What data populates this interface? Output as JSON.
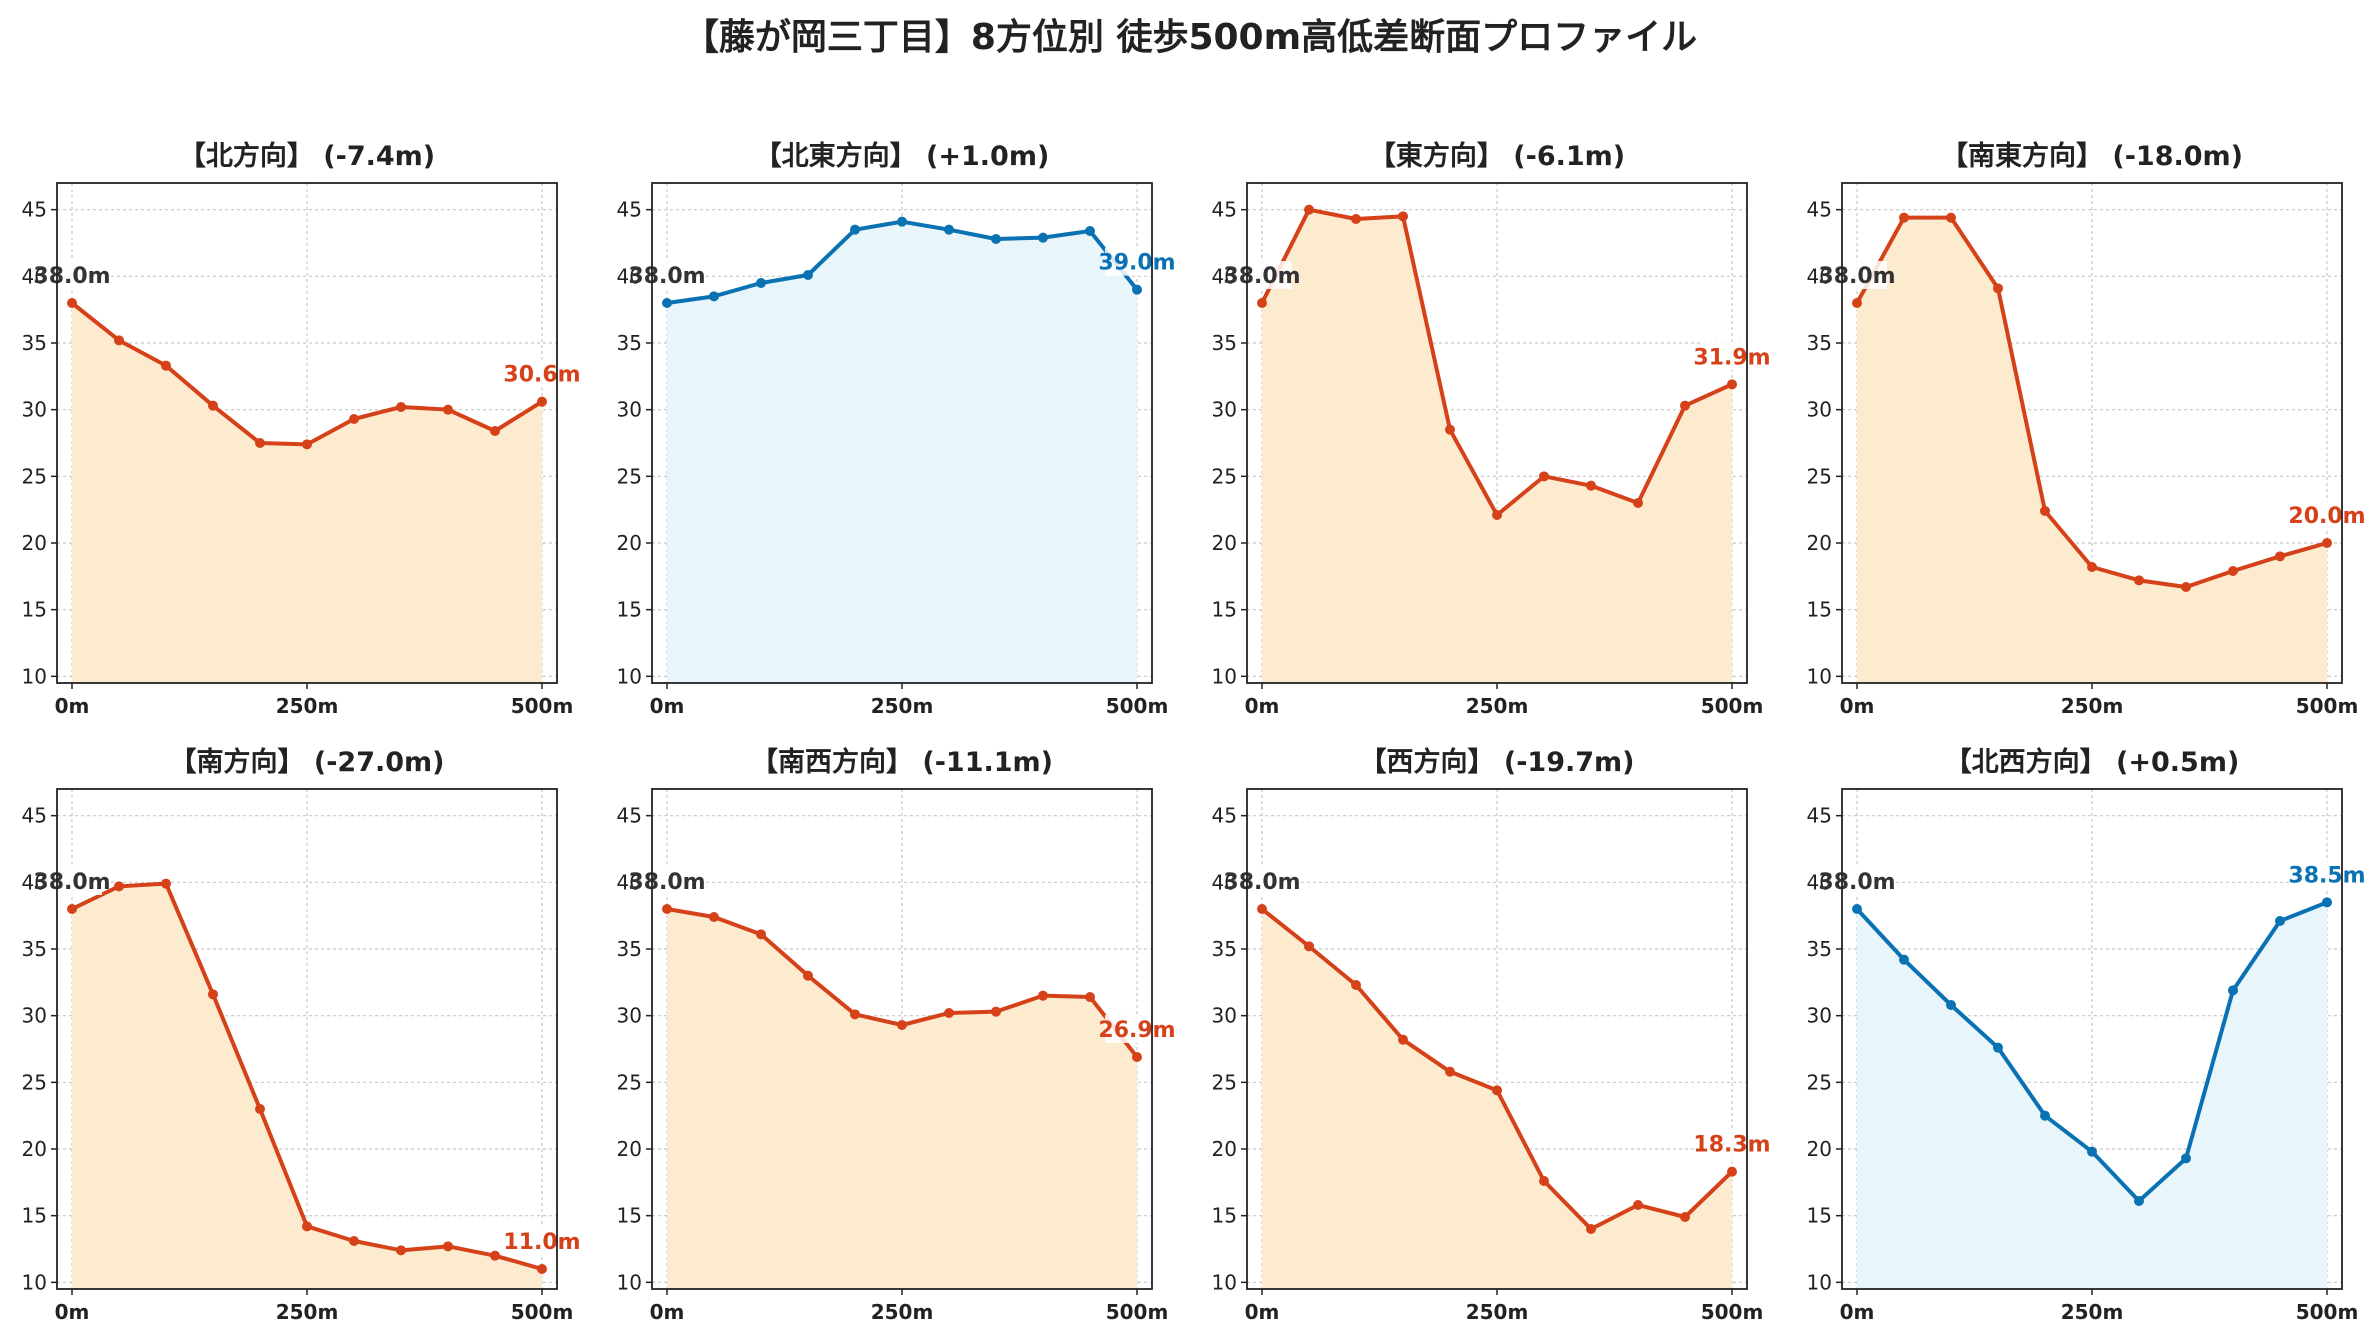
{
  "title": "【藤が岡三丁目】8方位別 徒歩500m高低差断面プロファイル",
  "colors": {
    "decrease_line": "#D5421A",
    "decrease_fill": "#FDEBD0",
    "increase_line": "#0A72B3",
    "increase_fill": "#E8F5FB",
    "start_label": "#333333",
    "grid": "#c8c8c8",
    "axis": "#222222"
  },
  "chart_data": [
    {
      "type": "area",
      "title": "【北方向】 (-7.4m)",
      "trend": "decrease",
      "x": [
        0,
        50,
        100,
        150,
        200,
        250,
        300,
        350,
        400,
        450,
        500
      ],
      "y": [
        38.0,
        35.2,
        33.3,
        30.3,
        27.5,
        27.4,
        29.3,
        30.2,
        30.0,
        28.4,
        30.6
      ],
      "start_label": "38.0m",
      "end_label": "30.6m",
      "xticks": [
        "0m",
        "250m",
        "500m"
      ],
      "yticks": [
        "10",
        "15",
        "20",
        "25",
        "30",
        "35",
        "40",
        "45"
      ],
      "xlim": [
        0,
        500
      ],
      "ylim": [
        9.5,
        47
      ],
      "grid": true
    },
    {
      "type": "area",
      "title": "【北東方向】 (+1.0m)",
      "trend": "increase",
      "x": [
        0,
        50,
        100,
        150,
        200,
        250,
        300,
        350,
        400,
        450,
        500
      ],
      "y": [
        38.0,
        38.5,
        39.5,
        40.1,
        43.5,
        44.1,
        43.5,
        42.8,
        42.9,
        43.4,
        39.0
      ],
      "start_label": "38.0m",
      "end_label": "39.0m",
      "xticks": [
        "0m",
        "250m",
        "500m"
      ],
      "yticks": [
        "10",
        "15",
        "20",
        "25",
        "30",
        "35",
        "40",
        "45"
      ],
      "xlim": [
        0,
        500
      ],
      "ylim": [
        9.5,
        47
      ],
      "grid": true
    },
    {
      "type": "area",
      "title": "【東方向】 (-6.1m)",
      "trend": "decrease",
      "x": [
        0,
        50,
        100,
        150,
        200,
        250,
        300,
        350,
        400,
        450,
        500
      ],
      "y": [
        38.0,
        45.0,
        44.3,
        44.5,
        28.5,
        22.1,
        25.0,
        24.3,
        23.0,
        30.3,
        31.9
      ],
      "start_label": "38.0m",
      "end_label": "31.9m",
      "xticks": [
        "0m",
        "250m",
        "500m"
      ],
      "yticks": [
        "10",
        "15",
        "20",
        "25",
        "30",
        "35",
        "40",
        "45"
      ],
      "xlim": [
        0,
        500
      ],
      "ylim": [
        9.5,
        47
      ],
      "grid": true
    },
    {
      "type": "area",
      "title": "【南東方向】 (-18.0m)",
      "trend": "decrease",
      "x": [
        0,
        50,
        100,
        150,
        200,
        250,
        300,
        350,
        400,
        450,
        500
      ],
      "y": [
        38.0,
        44.4,
        44.4,
        39.1,
        22.4,
        18.2,
        17.2,
        16.7,
        17.9,
        19.0,
        20.0
      ],
      "start_label": "38.0m",
      "end_label": "20.0m",
      "xticks": [
        "0m",
        "250m",
        "500m"
      ],
      "yticks": [
        "10",
        "15",
        "20",
        "25",
        "30",
        "35",
        "40",
        "45"
      ],
      "xlim": [
        0,
        500
      ],
      "ylim": [
        9.5,
        47
      ],
      "grid": true
    },
    {
      "type": "area",
      "title": "【南方向】 (-27.0m)",
      "trend": "decrease",
      "x": [
        0,
        50,
        100,
        150,
        200,
        250,
        300,
        350,
        400,
        450,
        500
      ],
      "y": [
        38.0,
        39.7,
        39.9,
        31.6,
        23.0,
        14.2,
        13.1,
        12.4,
        12.7,
        12.0,
        11.0
      ],
      "start_label": "38.0m",
      "end_label": "11.0m",
      "xticks": [
        "0m",
        "250m",
        "500m"
      ],
      "yticks": [
        "10",
        "15",
        "20",
        "25",
        "30",
        "35",
        "40",
        "45"
      ],
      "xlim": [
        0,
        500
      ],
      "ylim": [
        9.5,
        47
      ],
      "grid": true
    },
    {
      "type": "area",
      "title": "【南西方向】 (-11.1m)",
      "trend": "decrease",
      "x": [
        0,
        50,
        100,
        150,
        200,
        250,
        300,
        350,
        400,
        450,
        500
      ],
      "y": [
        38.0,
        37.4,
        36.1,
        33.0,
        30.1,
        29.3,
        30.2,
        30.3,
        31.5,
        31.4,
        26.9
      ],
      "start_label": "38.0m",
      "end_label": "26.9m",
      "xticks": [
        "0m",
        "250m",
        "500m"
      ],
      "yticks": [
        "10",
        "15",
        "20",
        "25",
        "30",
        "35",
        "40",
        "45"
      ],
      "xlim": [
        0,
        500
      ],
      "ylim": [
        9.5,
        47
      ],
      "grid": true
    },
    {
      "type": "area",
      "title": "【西方向】 (-19.7m)",
      "trend": "decrease",
      "x": [
        0,
        50,
        100,
        150,
        200,
        250,
        300,
        350,
        400,
        450,
        500
      ],
      "y": [
        38.0,
        35.2,
        32.3,
        28.2,
        25.8,
        24.4,
        17.6,
        14.0,
        15.8,
        14.9,
        18.3
      ],
      "start_label": "38.0m",
      "end_label": "18.3m",
      "xticks": [
        "0m",
        "250m",
        "500m"
      ],
      "yticks": [
        "10",
        "15",
        "20",
        "25",
        "30",
        "35",
        "40",
        "45"
      ],
      "xlim": [
        0,
        500
      ],
      "ylim": [
        9.5,
        47
      ],
      "grid": true
    },
    {
      "type": "area",
      "title": "【北西方向】 (+0.5m)",
      "trend": "increase",
      "x": [
        0,
        50,
        100,
        150,
        200,
        250,
        300,
        350,
        400,
        450,
        500
      ],
      "y": [
        38.0,
        34.2,
        30.8,
        27.6,
        22.5,
        19.8,
        16.1,
        19.3,
        31.9,
        37.1,
        38.5
      ],
      "start_label": "38.0m",
      "end_label": "38.5m",
      "xticks": [
        "0m",
        "250m",
        "500m"
      ],
      "yticks": [
        "10",
        "15",
        "20",
        "25",
        "30",
        "35",
        "40",
        "45"
      ],
      "xlim": [
        0,
        500
      ],
      "ylim": [
        9.5,
        47
      ],
      "grid": true
    }
  ]
}
